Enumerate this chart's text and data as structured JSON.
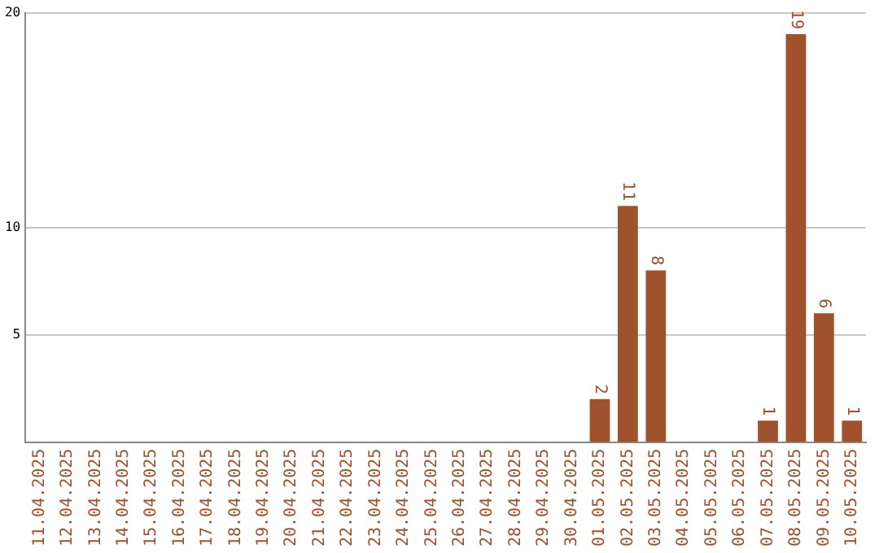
{
  "chart_data": {
    "type": "bar",
    "categories": [
      "11.04.2025",
      "12.04.2025",
      "13.04.2025",
      "14.04.2025",
      "15.04.2025",
      "16.04.2025",
      "17.04.2025",
      "18.04.2025",
      "19.04.2025",
      "20.04.2025",
      "21.04.2025",
      "22.04.2025",
      "23.04.2025",
      "24.04.2025",
      "25.04.2025",
      "26.04.2025",
      "27.04.2025",
      "28.04.2025",
      "29.04.2025",
      "30.04.2025",
      "01.05.2025",
      "02.05.2025",
      "03.05.2025",
      "04.05.2025",
      "05.05.2025",
      "06.05.2025",
      "07.05.2025",
      "08.05.2025",
      "09.05.2025",
      "10.05.2025"
    ],
    "values": [
      0,
      0,
      0,
      0,
      0,
      0,
      0,
      0,
      0,
      0,
      0,
      0,
      0,
      0,
      0,
      0,
      0,
      0,
      0,
      0,
      2,
      11,
      8,
      0,
      0,
      0,
      1,
      19,
      6,
      1
    ],
    "value_labels": [
      null,
      null,
      null,
      null,
      null,
      null,
      null,
      null,
      null,
      null,
      null,
      null,
      null,
      null,
      null,
      null,
      null,
      null,
      null,
      null,
      "2",
      "11",
      "8",
      null,
      null,
      null,
      "1",
      "19",
      "6",
      "1"
    ],
    "color": "#a0522d",
    "ylim": [
      0,
      20
    ],
    "yticks": [
      5,
      10,
      20
    ],
    "grid": "y",
    "legend": false
  }
}
